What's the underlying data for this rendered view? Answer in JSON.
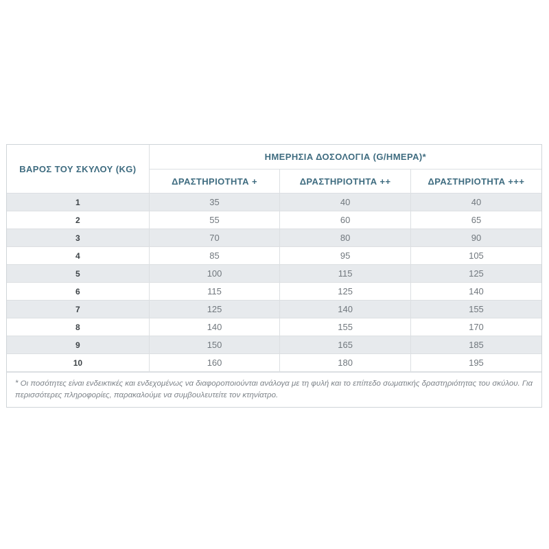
{
  "table": {
    "weight_header": "ΒΑΡΟΣ ΤΟΥ ΣΚΥΛΟΥ (KG)",
    "dosage_header": "ΗΜΕΡΗΣΙΑ ΔΟΣΟΛΟΓΙΑ (G/ΗΜΕΡΑ)*",
    "activity_headers": [
      "ΔΡΑΣΤΗΡΙΟΤΗΤΑ +",
      "ΔΡΑΣΤΗΡΙΟΤΗΤΑ ++",
      "ΔΡΑΣΤΗΡΙΟΤΗΤΑ +++"
    ],
    "rows": [
      {
        "weight": "1",
        "values": [
          "35",
          "40",
          "40"
        ]
      },
      {
        "weight": "2",
        "values": [
          "55",
          "60",
          "65"
        ]
      },
      {
        "weight": "3",
        "values": [
          "70",
          "80",
          "90"
        ]
      },
      {
        "weight": "4",
        "values": [
          "85",
          "95",
          "105"
        ]
      },
      {
        "weight": "5",
        "values": [
          "100",
          "115",
          "125"
        ]
      },
      {
        "weight": "6",
        "values": [
          "115",
          "125",
          "140"
        ]
      },
      {
        "weight": "7",
        "values": [
          "125",
          "140",
          "155"
        ]
      },
      {
        "weight": "8",
        "values": [
          "140",
          "155",
          "170"
        ]
      },
      {
        "weight": "9",
        "values": [
          "150",
          "165",
          "185"
        ]
      },
      {
        "weight": "10",
        "values": [
          "160",
          "180",
          "195"
        ]
      }
    ],
    "footnote": "* Οι ποσότητες είναι ενδεικτικές και ενδεχομένως να διαφοροποιούνται ανάλογα με τη φυλή και το επίπεδο σωματικής δραστηριότητας του σκύλου. Για περισσότερες πληροφορίες, παρακαλούμε να συμβουλευτείτε τον κτηνίατρο."
  },
  "colors": {
    "header_text": "#3f6c80",
    "stripe_background": "#e7eaed",
    "border": "#dcdfe2",
    "weight_text": "#3d4347",
    "value_text": "#70777d",
    "footnote_text": "#7d8389"
  }
}
